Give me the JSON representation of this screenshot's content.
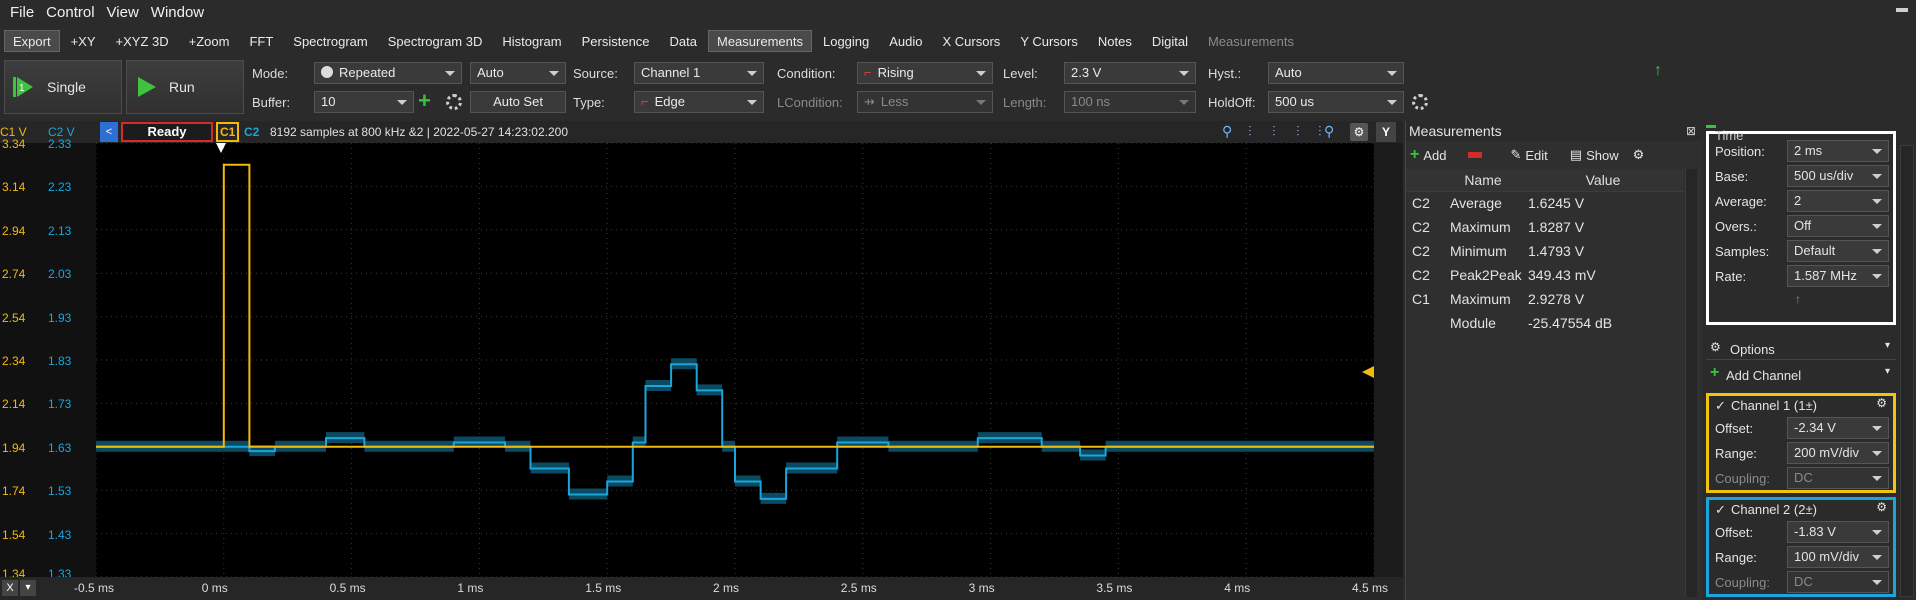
{
  "menu": [
    "File",
    "Control",
    "View",
    "Window"
  ],
  "toolbar": {
    "tabs": [
      "Export",
      "+XY",
      "+XYZ 3D",
      "+Zoom",
      "FFT",
      "Spectrogram",
      "Spectrogram 3D",
      "Histogram",
      "Persistence",
      "Data",
      "Measurements",
      "Logging",
      "Audio",
      "X Cursors",
      "Y Cursors",
      "Notes",
      "Digital",
      "Measurements"
    ]
  },
  "trigger": {
    "single_label": "Single",
    "run_label": "Run",
    "mode_label": "Mode:",
    "mode_value": "Repeated",
    "mode_auto": "Auto",
    "buffer_label": "Buffer:",
    "buffer_value": "10",
    "autoset_label": "Auto Set",
    "source_label": "Source:",
    "source_value": "Channel 1",
    "type_label": "Type:",
    "type_value": "Edge",
    "condition_label": "Condition:",
    "condition_value": "Rising",
    "lcondition_label": "LCondition:",
    "lcondition_value": "Less",
    "level_label": "Level:",
    "level_value": "2.3 V",
    "length_label": "Length:",
    "length_value": "100 ns",
    "hyst_label": "Hyst.:",
    "hyst_value": "Auto",
    "holdoff_label": "HoldOff:",
    "holdoff_value": "500 us"
  },
  "scope": {
    "c1_axis_label": "C1 V",
    "c2_axis_label": "C2 V",
    "status": "Ready",
    "ch1_tag": "C1",
    "ch2_tag": "C2",
    "info": "8192 samples at 800 kHz &2 | 2022-05-27 14:23:02.200",
    "y_left_labels": [
      "3.34",
      "3.14",
      "2.94",
      "2.74",
      "2.54",
      "2.34",
      "2.14",
      "1.94",
      "1.74",
      "1.54",
      "1.34"
    ],
    "y_right_labels": [
      "2.33",
      "2.23",
      "2.13",
      "2.03",
      "1.93",
      "1.83",
      "1.73",
      "1.63",
      "1.53",
      "1.43",
      "1.33"
    ],
    "x_labels": [
      "-0.5 ms",
      "0 ms",
      "0.5 ms",
      "1 ms",
      "1.5 ms",
      "2 ms",
      "2.5 ms",
      "3 ms",
      "3.5 ms",
      "4 ms",
      "4.5 ms"
    ],
    "colors": {
      "c1": "#f2b90f",
      "c2": "#1aa6dc",
      "ready_border": "#d42a2a",
      "grid": "#3a3a3a"
    }
  },
  "measurements": {
    "title": "Measurements",
    "add_label": "Add",
    "edit_label": "Edit",
    "show_label": "Show",
    "headers": [
      "Name",
      "Value"
    ],
    "rows": [
      {
        "ch": "C2",
        "name": "Average",
        "value": "1.6245 V"
      },
      {
        "ch": "C2",
        "name": "Maximum",
        "value": "1.8287 V"
      },
      {
        "ch": "C2",
        "name": "Minimum",
        "value": "1.4793 V"
      },
      {
        "ch": "C2",
        "name": "Peak2Peak",
        "value": "349.43 mV"
      },
      {
        "ch": "C1",
        "name": "Maximum",
        "value": "2.9278 V"
      },
      {
        "ch": "",
        "name": "Module",
        "value": "-25.47554 dB"
      }
    ]
  },
  "panel": {
    "time_title": "Time",
    "position_label": "Position:",
    "position_value": "2 ms",
    "base_label": "Base:",
    "base_value": "500 us/div",
    "average_label": "Average:",
    "average_value": "2",
    "overs_label": "Overs.:",
    "overs_value": "Off",
    "samples_label": "Samples:",
    "samples_value": "Default",
    "rate_label": "Rate:",
    "rate_value": "1.587 MHz",
    "options_label": "Options",
    "add_channel_label": "Add Channel",
    "ch1_title": "Channel 1 (1±)",
    "ch1_offset_label": "Offset:",
    "ch1_offset_value": "-2.34 V",
    "ch1_range_label": "Range:",
    "ch1_range_value": "200 mV/div",
    "ch1_coupling_label": "Coupling:",
    "ch1_coupling_value": "DC",
    "ch2_title": "Channel 2 (2±)",
    "ch2_offset_label": "Offset:",
    "ch2_offset_value": "-1.83 V",
    "ch2_range_label": "Range:",
    "ch2_range_value": "100 mV/div",
    "ch2_coupling_label": "Coupling:",
    "ch2_coupling_value": "DC"
  },
  "bottom": {
    "close_glyph": "X"
  }
}
